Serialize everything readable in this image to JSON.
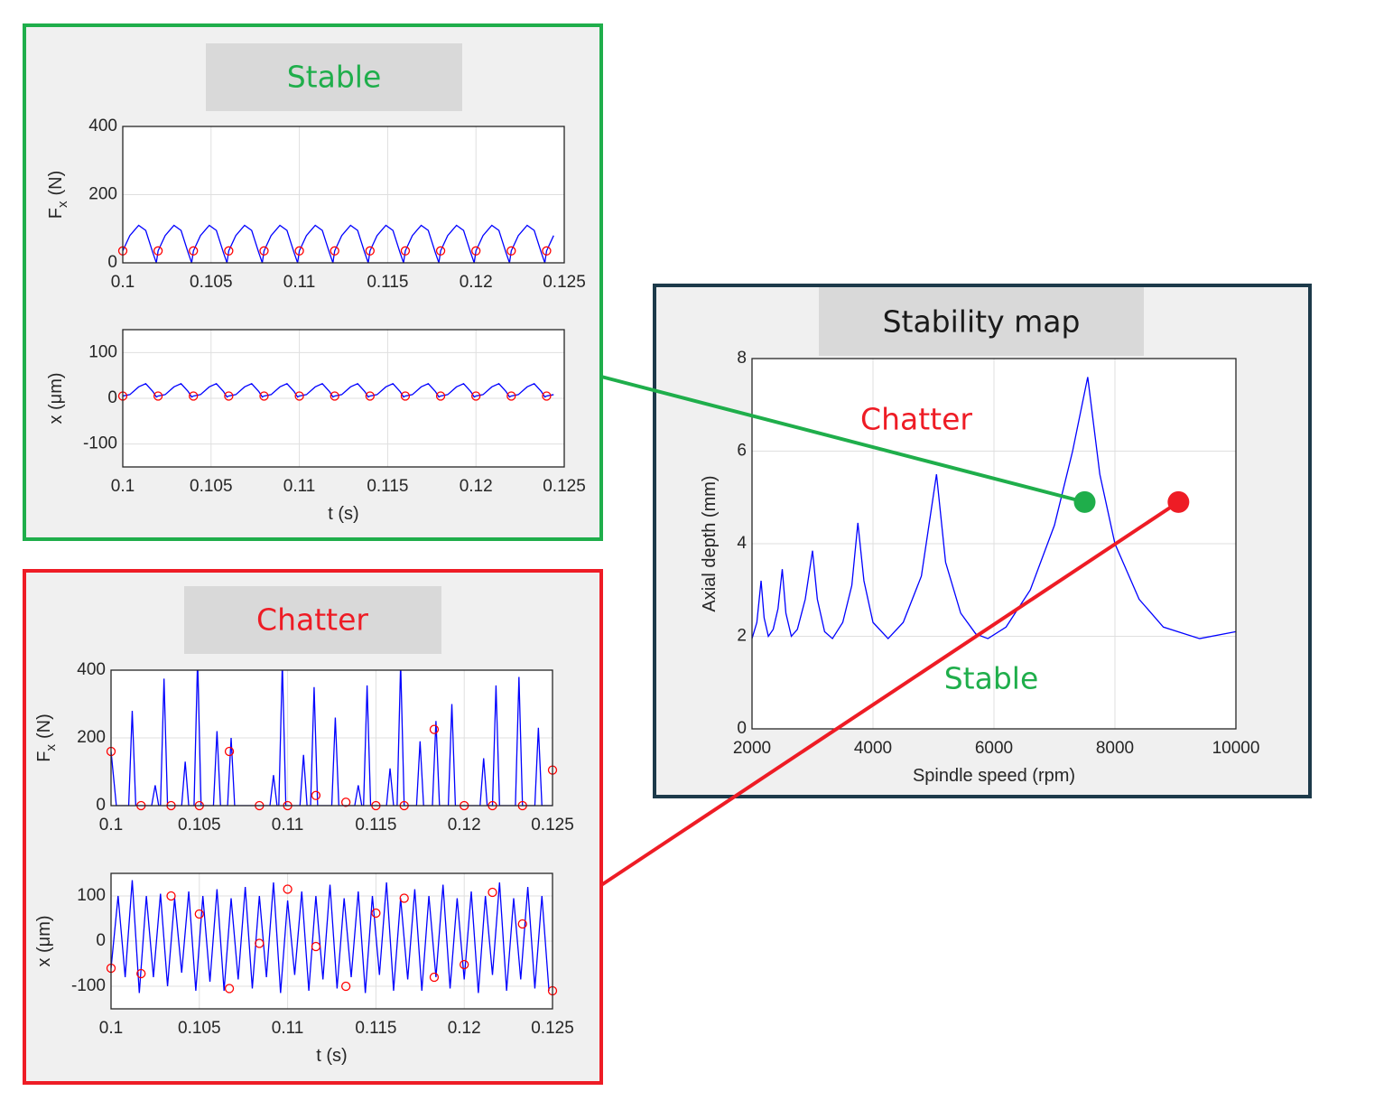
{
  "panels": [
    {
      "title": "Stable",
      "color": "#1fae4b"
    },
    {
      "title": "Chatter",
      "color": "#ee1c25"
    },
    {
      "title": "Stability map",
      "color": "#1a1a1a"
    }
  ],
  "chart_data": [
    {
      "type": "line",
      "ylabel": [
        "F",
        "x",
        "(N)"
      ],
      "xlim": [
        0.1,
        0.125
      ],
      "xticks": [
        0.1,
        0.105,
        0.11,
        0.115,
        0.12,
        0.125
      ],
      "ylim": [
        0,
        400
      ],
      "yticks": [
        0,
        200,
        400
      ],
      "grid": true,
      "series": [
        {
          "mode": "line",
          "color": "#0000ff",
          "x": [
            0.1,
            0.1004,
            0.1009,
            0.1013,
            0.1017,
            0.1019,
            0.102,
            0.1024,
            0.1029,
            0.1033,
            0.1037,
            0.1039,
            0.104,
            0.1044,
            0.1049,
            0.1053,
            0.1057,
            0.1059,
            0.106,
            0.1064,
            0.1069,
            0.1073,
            0.1077,
            0.1079,
            0.108,
            0.1084,
            0.1089,
            0.1093,
            0.1097,
            0.1099,
            0.11,
            0.1104,
            0.1109,
            0.1113,
            0.1117,
            0.1119,
            0.112,
            0.1124,
            0.1129,
            0.1133,
            0.1137,
            0.1139,
            0.114,
            0.1144,
            0.1149,
            0.1153,
            0.1157,
            0.1159,
            0.116,
            0.1164,
            0.1169,
            0.1173,
            0.1177,
            0.1179,
            0.118,
            0.1184,
            0.1189,
            0.1193,
            0.1197,
            0.1199,
            0.12,
            0.1204,
            0.1209,
            0.1213,
            0.1217,
            0.1219,
            0.122,
            0.1224,
            0.1229,
            0.1233,
            0.1237,
            0.1239,
            0.124,
            0.1244
          ],
          "values": [
            35,
            80,
            110,
            95,
            30,
            0,
            35,
            80,
            110,
            95,
            30,
            0,
            35,
            80,
            110,
            95,
            30,
            0,
            35,
            80,
            110,
            95,
            30,
            0,
            35,
            80,
            110,
            95,
            30,
            0,
            35,
            80,
            110,
            95,
            30,
            0,
            35,
            80,
            110,
            95,
            30,
            0,
            35,
            80,
            110,
            95,
            30,
            0,
            35,
            80,
            110,
            95,
            30,
            0,
            35,
            80,
            110,
            95,
            30,
            0,
            35,
            80,
            110,
            95,
            30,
            0,
            35,
            80,
            110,
            95,
            30,
            0,
            35,
            80
          ]
        },
        {
          "mode": "markers",
          "color": "#ff0000",
          "x": [
            0.1,
            0.102,
            0.104,
            0.106,
            0.108,
            0.11,
            0.112,
            0.114,
            0.116,
            0.118,
            0.12,
            0.122,
            0.124
          ],
          "values": [
            35,
            35,
            35,
            35,
            35,
            35,
            35,
            35,
            35,
            35,
            35,
            35,
            35
          ]
        }
      ]
    },
    {
      "type": "line",
      "ylabel": "x (μm)",
      "xlabel": "t (s)",
      "xlim": [
        0.1,
        0.125
      ],
      "xticks": [
        0.1,
        0.105,
        0.11,
        0.115,
        0.12,
        0.125
      ],
      "ylim": [
        -150,
        150
      ],
      "yticks": [
        -100,
        0,
        100
      ],
      "grid": true,
      "series": [
        {
          "mode": "line",
          "color": "#0000ff",
          "x": [
            0.1,
            0.1004,
            0.1009,
            0.1013,
            0.1017,
            0.1019,
            0.102,
            0.1024,
            0.1029,
            0.1033,
            0.1037,
            0.1039,
            0.104,
            0.1044,
            0.1049,
            0.1053,
            0.1057,
            0.1059,
            0.106,
            0.1064,
            0.1069,
            0.1073,
            0.1077,
            0.1079,
            0.108,
            0.1084,
            0.1089,
            0.1093,
            0.1097,
            0.1099,
            0.11,
            0.1104,
            0.1109,
            0.1113,
            0.1117,
            0.1119,
            0.112,
            0.1124,
            0.1129,
            0.1133,
            0.1137,
            0.1139,
            0.114,
            0.1144,
            0.1149,
            0.1153,
            0.1157,
            0.1159,
            0.116,
            0.1164,
            0.1169,
            0.1173,
            0.1177,
            0.1179,
            0.118,
            0.1184,
            0.1189,
            0.1193,
            0.1197,
            0.1199,
            0.12,
            0.1204,
            0.1209,
            0.1213,
            0.1217,
            0.1219,
            0.122,
            0.1224,
            0.1229,
            0.1233,
            0.1237,
            0.1239,
            0.124,
            0.1244
          ],
          "values": [
            5,
            8,
            25,
            32,
            15,
            3,
            5,
            8,
            25,
            32,
            15,
            3,
            5,
            8,
            25,
            32,
            15,
            3,
            5,
            8,
            25,
            32,
            15,
            3,
            5,
            8,
            25,
            32,
            15,
            3,
            5,
            8,
            25,
            32,
            15,
            3,
            5,
            8,
            25,
            32,
            15,
            3,
            5,
            8,
            25,
            32,
            15,
            3,
            5,
            8,
            25,
            32,
            15,
            3,
            5,
            8,
            25,
            32,
            15,
            3,
            5,
            8,
            25,
            32,
            15,
            3,
            5,
            8,
            25,
            32,
            15,
            3,
            5,
            8
          ]
        },
        {
          "mode": "markers",
          "color": "#ff0000",
          "x": [
            0.1,
            0.102,
            0.104,
            0.106,
            0.108,
            0.11,
            0.112,
            0.114,
            0.116,
            0.118,
            0.12,
            0.122,
            0.124
          ],
          "values": [
            5,
            5,
            5,
            5,
            5,
            5,
            5,
            5,
            5,
            5,
            5,
            5,
            5
          ]
        }
      ]
    },
    {
      "type": "line",
      "ylabel": [
        "F",
        "x",
        "(N)"
      ],
      "xlim": [
        0.1,
        0.125
      ],
      "xticks": [
        0.1,
        0.105,
        0.11,
        0.115,
        0.12,
        0.125
      ],
      "ylim": [
        0,
        400
      ],
      "yticks": [
        0,
        200,
        400
      ],
      "grid": true,
      "series": [
        {
          "mode": "line",
          "color": "#0000ff",
          "x": [
            0.1,
            0.1003,
            0.101,
            0.1012,
            0.1014,
            0.1023,
            0.1025,
            0.1027,
            0.1028,
            0.103,
            0.1032,
            0.104,
            0.1042,
            0.1044,
            0.1047,
            0.1049,
            0.1051,
            0.1058,
            0.106,
            0.1062,
            0.1066,
            0.1068,
            0.107,
            0.109,
            0.1092,
            0.1094,
            0.1095,
            0.1097,
            0.1099,
            0.1107,
            0.1109,
            0.1111,
            0.1113,
            0.1115,
            0.1117,
            0.1125,
            0.1127,
            0.1129,
            0.1138,
            0.114,
            0.1142,
            0.1143,
            0.1145,
            0.1147,
            0.1156,
            0.1158,
            0.116,
            0.1162,
            0.1164,
            0.1166,
            0.1173,
            0.1175,
            0.1177,
            0.1182,
            0.1184,
            0.1186,
            0.1191,
            0.1193,
            0.1195,
            0.1209,
            0.1211,
            0.1213,
            0.1216,
            0.1218,
            0.122,
            0.1229,
            0.1231,
            0.1233,
            0.124,
            0.1242,
            0.1244,
            0.125
          ],
          "values": [
            160,
            0,
            0,
            280,
            0,
            0,
            60,
            0,
            0,
            375,
            0,
            0,
            130,
            0,
            0,
            430,
            0,
            0,
            220,
            0,
            0,
            200,
            0,
            0,
            90,
            0,
            0,
            420,
            0,
            0,
            150,
            0,
            0,
            350,
            0,
            0,
            260,
            0,
            0,
            60,
            0,
            0,
            355,
            0,
            0,
            110,
            0,
            0,
            420,
            0,
            0,
            190,
            0,
            0,
            250,
            0,
            0,
            300,
            0,
            0,
            140,
            0,
            0,
            355,
            0,
            0,
            380,
            0,
            0,
            230,
            0,
            0
          ]
        },
        {
          "mode": "markers",
          "color": "#ff0000",
          "x": [
            0.1,
            0.1017,
            0.1034,
            0.105,
            0.1067,
            0.1084,
            0.11,
            0.1116,
            0.1133,
            0.115,
            0.1166,
            0.1183,
            0.12,
            0.1216,
            0.1233,
            0.125
          ],
          "values": [
            160,
            0,
            0,
            0,
            160,
            0,
            0,
            30,
            10,
            0,
            0,
            225,
            0,
            0,
            0,
            105
          ]
        }
      ]
    },
    {
      "type": "line",
      "ylabel": "x (μm)",
      "xlabel": "t (s)",
      "xlim": [
        0.1,
        0.125
      ],
      "xticks": [
        0.1,
        0.105,
        0.11,
        0.115,
        0.12,
        0.125
      ],
      "ylim": [
        -150,
        150
      ],
      "yticks": [
        -100,
        0,
        100
      ],
      "grid": true,
      "series": [
        {
          "mode": "line",
          "color": "#0000ff",
          "x": [
            0.1,
            0.1004,
            0.1008,
            0.1012,
            0.1016,
            0.102,
            0.1024,
            0.1028,
            0.1032,
            0.1036,
            0.104,
            0.1044,
            0.1048,
            0.1052,
            0.1056,
            0.106,
            0.1064,
            0.1068,
            0.1072,
            0.1076,
            0.108,
            0.1084,
            0.1088,
            0.1092,
            0.1096,
            0.11,
            0.1104,
            0.1108,
            0.1112,
            0.1116,
            0.112,
            0.1124,
            0.1128,
            0.1132,
            0.1136,
            0.114,
            0.1144,
            0.1148,
            0.1152,
            0.1156,
            0.116,
            0.1164,
            0.1168,
            0.1172,
            0.1176,
            0.118,
            0.1184,
            0.1188,
            0.1192,
            0.1196,
            0.12,
            0.1204,
            0.1208,
            0.1212,
            0.1216,
            0.122,
            0.1224,
            0.1228,
            0.1232,
            0.1236,
            0.124,
            0.1244,
            0.1248
          ],
          "values": [
            -60,
            100,
            -80,
            135,
            -115,
            100,
            -80,
            105,
            -100,
            95,
            -70,
            110,
            -110,
            100,
            -90,
            115,
            -110,
            95,
            -85,
            120,
            -105,
            100,
            -80,
            130,
            -115,
            90,
            -75,
            110,
            -110,
            100,
            -85,
            125,
            -105,
            95,
            -80,
            110,
            -115,
            100,
            -75,
            130,
            -110,
            95,
            -85,
            115,
            -110,
            100,
            -80,
            125,
            -105,
            95,
            -85,
            110,
            -115,
            100,
            -75,
            130,
            -110,
            95,
            -85,
            120,
            -105,
            100,
            -110
          ]
        },
        {
          "mode": "markers",
          "color": "#ff0000",
          "x": [
            0.1,
            0.1017,
            0.1034,
            0.105,
            0.1067,
            0.1084,
            0.11,
            0.1116,
            0.1133,
            0.115,
            0.1166,
            0.1183,
            0.12,
            0.1216,
            0.1233,
            0.125
          ],
          "values": [
            -60,
            -72,
            100,
            60,
            -105,
            -5,
            115,
            -12,
            -100,
            62,
            95,
            -80,
            -52,
            108,
            38,
            -110
          ]
        }
      ]
    },
    {
      "type": "line",
      "xlabel": "Spindle speed (rpm)",
      "ylabel": "Axial depth (mm)",
      "xlim": [
        2000,
        10000
      ],
      "xticks": [
        2000,
        4000,
        6000,
        8000,
        10000
      ],
      "ylim": [
        0,
        8
      ],
      "yticks": [
        0,
        2,
        4,
        6,
        8
      ],
      "grid": true,
      "annotations": [
        {
          "text": "Chatter",
          "color": "#ee1c25"
        },
        {
          "text": "Stable",
          "color": "#1fae4b"
        }
      ],
      "series": [
        {
          "mode": "line",
          "color": "#0000ff",
          "x": [
            2000,
            2080,
            2150,
            2200,
            2270,
            2350,
            2430,
            2500,
            2560,
            2650,
            2750,
            2880,
            3000,
            3080,
            3200,
            3330,
            3500,
            3650,
            3750,
            3850,
            4000,
            4250,
            4500,
            4800,
            5050,
            5200,
            5450,
            5700,
            5900,
            6200,
            6600,
            7000,
            7300,
            7550,
            7750,
            8000,
            8400,
            8800,
            9400,
            10000
          ],
          "values": [
            1.95,
            2.3,
            3.2,
            2.4,
            2.0,
            2.15,
            2.6,
            3.45,
            2.5,
            2.0,
            2.15,
            2.8,
            3.85,
            2.8,
            2.1,
            1.95,
            2.3,
            3.1,
            4.45,
            3.2,
            2.3,
            1.95,
            2.3,
            3.3,
            5.5,
            3.6,
            2.5,
            2.05,
            1.95,
            2.2,
            3.0,
            4.4,
            6.0,
            7.6,
            5.5,
            4.0,
            2.8,
            2.2,
            1.95,
            2.1
          ]
        },
        {
          "mode": "dot",
          "color": "#1fae4b",
          "x": [
            7500
          ],
          "values": [
            4.9
          ]
        },
        {
          "mode": "dot",
          "color": "#ee1c25",
          "x": [
            9050
          ],
          "values": [
            4.9
          ]
        }
      ]
    }
  ]
}
